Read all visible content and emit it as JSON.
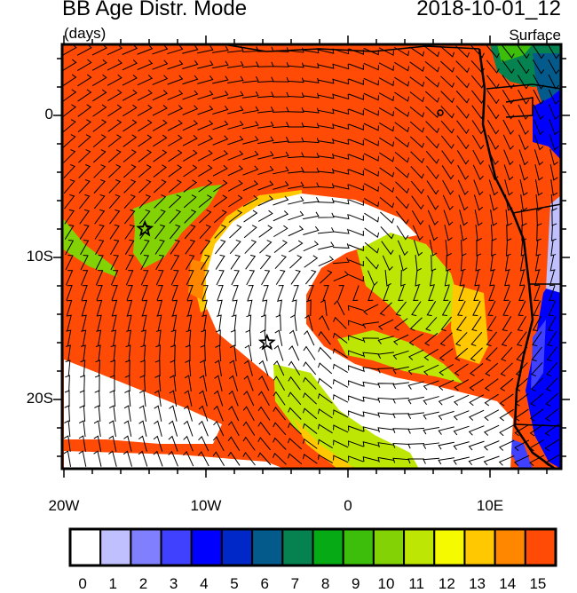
{
  "header": {
    "title": "BB Age Distr. Mode",
    "units": "(days)",
    "date": "2018-10-01_12",
    "level": "Surface"
  },
  "axes": {
    "lat_labels": [
      "0",
      "10S",
      "20S"
    ],
    "lon_labels": [
      "20W",
      "10W",
      "0",
      "10E"
    ]
  },
  "markers": [
    {
      "name": "star",
      "lon": -14.3,
      "lat": -8.0
    },
    {
      "name": "star",
      "lon": -5.7,
      "lat": -16.0
    }
  ],
  "colorbar": {
    "labels": [
      "0",
      "1",
      "2",
      "3",
      "4",
      "5",
      "6",
      "7",
      "8",
      "9",
      "10",
      "11",
      "12",
      "13",
      "14",
      "15"
    ],
    "colors": [
      "#FFFFFF",
      "#C0C0FF",
      "#8080FF",
      "#4040FF",
      "#0000FF",
      "#0028C8",
      "#055A8C",
      "#05824F",
      "#05AA14",
      "#3CBE0A",
      "#82D205",
      "#BEE605",
      "#F5FA00",
      "#FFC800",
      "#FF8700",
      "#FF4B05",
      "#FF0F05"
    ]
  },
  "colors": {
    "background_field": "#FF4B05",
    "frame": "#000000"
  }
}
